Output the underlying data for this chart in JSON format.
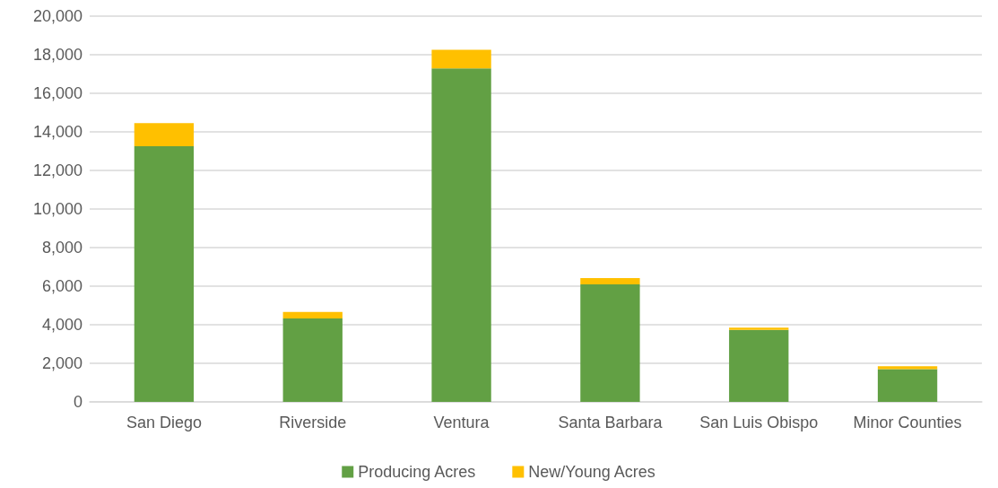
{
  "chart_data": {
    "type": "bar",
    "stacked": true,
    "categories": [
      "San Diego",
      "Riverside",
      "Ventura",
      "Santa Barbara",
      "San Luis Obispo",
      "Minor Counties"
    ],
    "series": [
      {
        "name": "Producing Acres",
        "color": "#62a044",
        "values": [
          13260,
          4330,
          17290,
          6090,
          3730,
          1700
        ]
      },
      {
        "name": "New/Young Acres",
        "color": "#ffc000",
        "values": [
          1190,
          330,
          970,
          330,
          120,
          150
        ]
      }
    ],
    "ylim": [
      0,
      20000
    ],
    "yticks": [
      {
        "value": 0,
        "label": "0"
      },
      {
        "value": 2000,
        "label": "2,000"
      },
      {
        "value": 4000,
        "label": "4,000"
      },
      {
        "value": 6000,
        "label": "6,000"
      },
      {
        "value": 8000,
        "label": "8,000"
      },
      {
        "value": 10000,
        "label": "10,000"
      },
      {
        "value": 12000,
        "label": "12,000"
      },
      {
        "value": 14000,
        "label": "14,000"
      },
      {
        "value": 16000,
        "label": "16,000"
      },
      {
        "value": 18000,
        "label": "18,000"
      },
      {
        "value": 20000,
        "label": "20,000"
      }
    ],
    "grid": "y",
    "legend": "bottom"
  }
}
